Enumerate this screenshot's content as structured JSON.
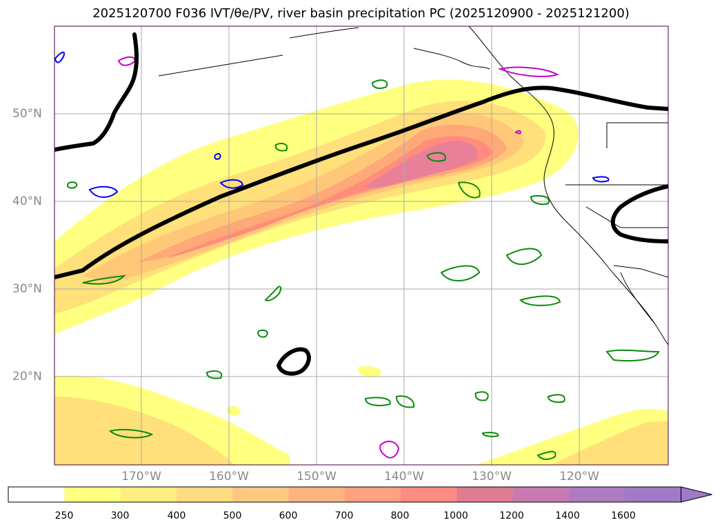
{
  "title": "2025120700 F036 IVT/θe/PV, river basin precipitation PC (2025120900 - 2025121200)",
  "map": {
    "lat_labels": [
      "50°N",
      "40°N",
      "30°N",
      "20°N"
    ],
    "lon_labels": [
      "170°W",
      "160°W",
      "150°W",
      "140°W",
      "130°W",
      "120°W"
    ]
  },
  "colorbar": {
    "labels": [
      "250",
      "300",
      "400",
      "500",
      "600",
      "700",
      "800",
      "1000",
      "1200",
      "1400",
      "1600"
    ],
    "colors": [
      "#ffffff",
      "#ffff80",
      "#ffee80",
      "#ffdc80",
      "#ffc880",
      "#ffb380",
      "#ffa080",
      "#ff8c80",
      "#e07b90",
      "#c87ab0",
      "#b07ac0",
      "#a07ac8"
    ]
  },
  "ivt_colors": {
    "c1": "#ffff80",
    "c2": "#ffe07a",
    "c3": "#ffc878",
    "c4": "#ffa878",
    "c5": "#ff8c7c",
    "c6": "#e8809a"
  }
}
